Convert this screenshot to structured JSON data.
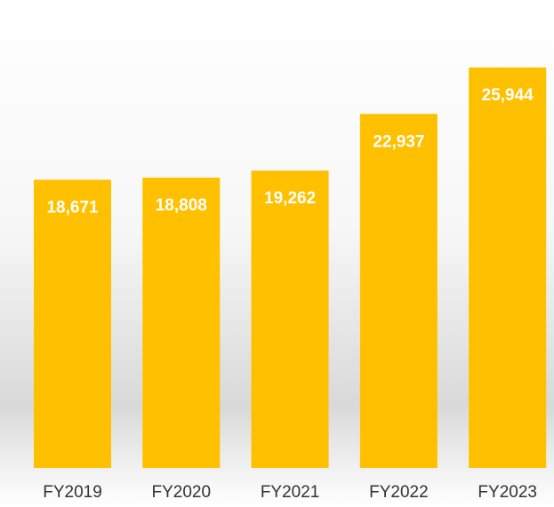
{
  "chart_data": {
    "type": "bar",
    "categories": [
      "FY2019",
      "FY2020",
      "FY2021",
      "FY2022",
      "FY2023"
    ],
    "values": [
      18671,
      18808,
      19262,
      22937,
      25944
    ],
    "value_labels": [
      "18,671",
      "18,808",
      "19,262",
      "22,937",
      "25,944"
    ],
    "color": "#ffc000"
  }
}
